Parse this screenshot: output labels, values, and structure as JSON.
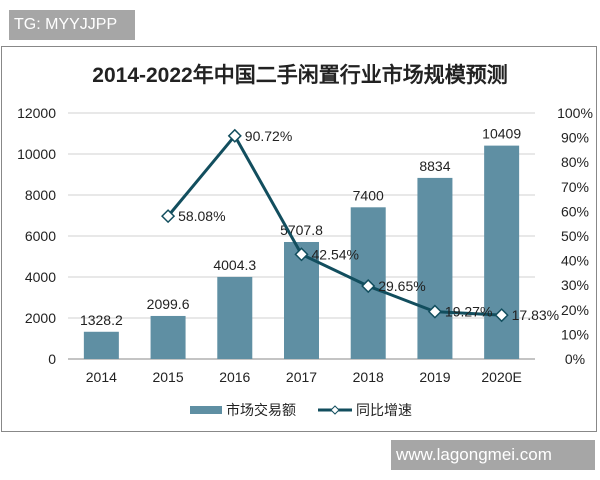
{
  "watermarks": {
    "top": "TG: MYYJJPP",
    "bottom": "www.lagongmei.com"
  },
  "chart_data": {
    "type": "bar+line",
    "title": "2014-2022年中国二手闲置行业市场规模预测",
    "categories": [
      "2014",
      "2015",
      "2016",
      "2017",
      "2018",
      "2019",
      "2020E"
    ],
    "series": [
      {
        "name": "市场交易额",
        "type": "bar",
        "axis": "left",
        "values": [
          1328.2,
          2099.6,
          4004.3,
          5707.8,
          7400,
          8834,
          10409
        ],
        "labels": [
          "1328.2",
          "2099.6",
          "4004.3",
          "5707.8",
          "7400",
          "8834",
          "10409"
        ],
        "color": "#5f8fa3"
      },
      {
        "name": "同比增速",
        "type": "line",
        "axis": "right",
        "values": [
          null,
          58.08,
          90.72,
          42.54,
          29.65,
          19.27,
          17.83
        ],
        "labels": [
          "",
          "58.08%",
          "90.72%",
          "42.54%",
          "29.65%",
          "19.27%",
          "17.83%"
        ],
        "color": "#124e5e"
      }
    ],
    "y_left": {
      "ylim": [
        0,
        12000
      ],
      "ticks": [
        "0",
        "2000",
        "4000",
        "6000",
        "8000",
        "10000",
        "12000"
      ]
    },
    "y_right": {
      "ylim": [
        0,
        100
      ],
      "ticks": [
        "0%",
        "10%",
        "20%",
        "30%",
        "40%",
        "50%",
        "60%",
        "70%",
        "80%",
        "90%",
        "100%"
      ]
    },
    "grid": true,
    "legend": "bottom"
  }
}
